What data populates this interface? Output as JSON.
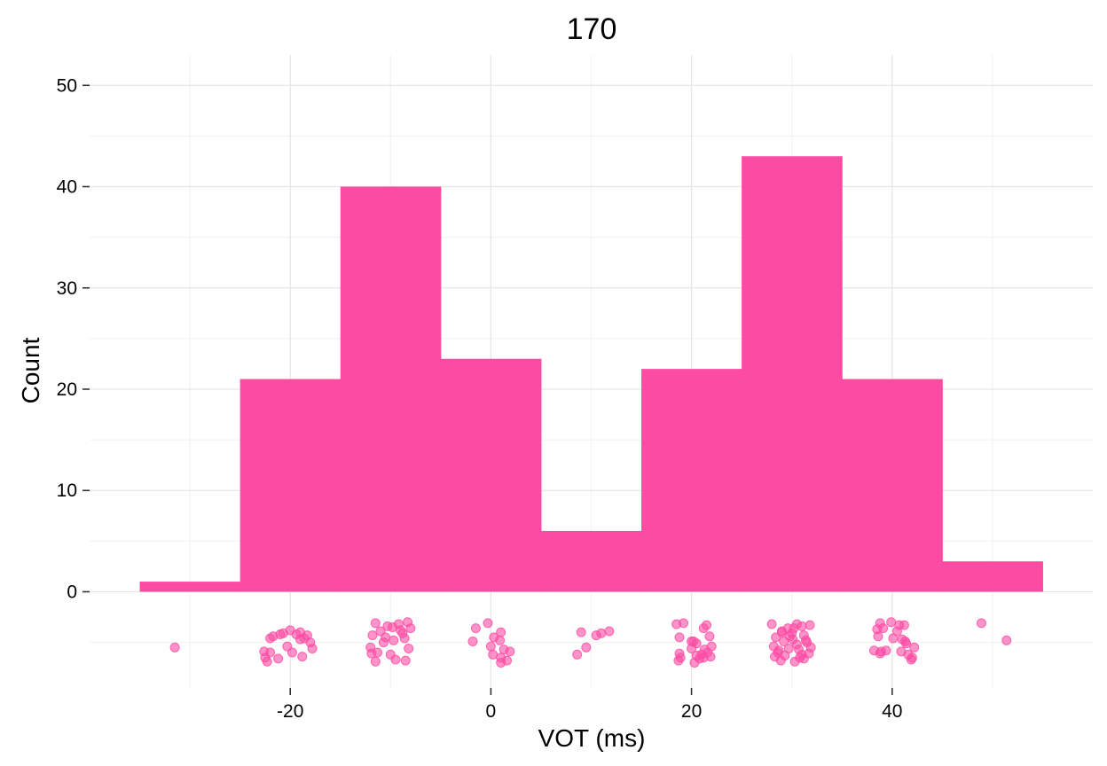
{
  "chart_data": {
    "type": "histogram",
    "title": "170",
    "xlabel": "VOT (ms)",
    "ylabel": "Count",
    "xlim": [
      -40,
      60
    ],
    "ylim": [
      -9.5,
      53
    ],
    "x_ticks": [
      -20,
      0,
      20,
      40
    ],
    "x_tick_labels": [
      "-20",
      "0",
      "20",
      "40"
    ],
    "y_ticks": [
      0,
      10,
      20,
      30,
      40,
      50
    ],
    "y_tick_labels": [
      "0",
      "10",
      "20",
      "30",
      "40",
      "50"
    ],
    "bin_width": 10,
    "bins": [
      {
        "x0": -35,
        "x1": -25,
        "count": 1
      },
      {
        "x0": -25,
        "x1": -15,
        "count": 21
      },
      {
        "x0": -15,
        "x1": -5,
        "count": 40
      },
      {
        "x0": -5,
        "x1": 5,
        "count": 23
      },
      {
        "x0": 5,
        "x1": 15,
        "count": 6
      },
      {
        "x0": 15,
        "x1": 25,
        "count": 22
      },
      {
        "x0": 25,
        "x1": 35,
        "count": 43
      },
      {
        "x0": 35,
        "x1": 45,
        "count": 21
      },
      {
        "x0": 45,
        "x1": 55,
        "count": 3
      }
    ],
    "jitter_points": [
      {
        "x": -31.5,
        "y": -5.5
      },
      {
        "x": -20,
        "y": -3.8
      },
      {
        "x": -19,
        "y": -4.0
      },
      {
        "x": -18.3,
        "y": -4.3
      },
      {
        "x": -21,
        "y": -4.2
      },
      {
        "x": -22,
        "y": -4.6
      },
      {
        "x": -18,
        "y": -5.0
      },
      {
        "x": -17.8,
        "y": -5.6
      },
      {
        "x": -19.8,
        "y": -6.0
      },
      {
        "x": -21.2,
        "y": -6.6
      },
      {
        "x": -22.3,
        "y": -6.9
      },
      {
        "x": -22.0,
        "y": -6.0
      },
      {
        "x": -20.3,
        "y": -5.4
      },
      {
        "x": -18.8,
        "y": -6.4
      },
      {
        "x": -22.5,
        "y": -6.5
      },
      {
        "x": -19.0,
        "y": -4.7
      },
      {
        "x": -22.6,
        "y": -5.9
      },
      {
        "x": -18.6,
        "y": -4.6
      },
      {
        "x": -21.7,
        "y": -4.4
      },
      {
        "x": -20.7,
        "y": -4.1
      },
      {
        "x": -19.4,
        "y": -4.2
      },
      {
        "x": -11.5,
        "y": -3.1
      },
      {
        "x": -10.3,
        "y": -3.4
      },
      {
        "x": -9.2,
        "y": -3.2
      },
      {
        "x": -8.3,
        "y": -3.0
      },
      {
        "x": -8.0,
        "y": -3.6
      },
      {
        "x": -8.8,
        "y": -4.1
      },
      {
        "x": -9.7,
        "y": -4.8
      },
      {
        "x": -10.7,
        "y": -5.0
      },
      {
        "x": -11.8,
        "y": -4.3
      },
      {
        "x": -12.0,
        "y": -5.5
      },
      {
        "x": -11.3,
        "y": -6.0
      },
      {
        "x": -9.5,
        "y": -6.7
      },
      {
        "x": -8.5,
        "y": -6.8
      },
      {
        "x": -11.5,
        "y": -6.9
      },
      {
        "x": -8.2,
        "y": -5.6
      },
      {
        "x": -10.0,
        "y": -6.2
      },
      {
        "x": -11.0,
        "y": -3.9
      },
      {
        "x": -9.0,
        "y": -3.8
      },
      {
        "x": -10.5,
        "y": -4.5
      },
      {
        "x": -8.6,
        "y": -4.6
      },
      {
        "x": -11.9,
        "y": -6.1
      },
      {
        "x": -9.8,
        "y": -3.5
      },
      {
        "x": -0.3,
        "y": -3.1
      },
      {
        "x": -1.5,
        "y": -3.6
      },
      {
        "x": 1.0,
        "y": -4.0
      },
      {
        "x": 0.3,
        "y": -4.5
      },
      {
        "x": -1.8,
        "y": -4.9
      },
      {
        "x": 0.9,
        "y": -4.8
      },
      {
        "x": 0.0,
        "y": -5.4
      },
      {
        "x": 1.3,
        "y": -5.7
      },
      {
        "x": 1.9,
        "y": -5.9
      },
      {
        "x": 0.2,
        "y": -6.2
      },
      {
        "x": 1.0,
        "y": -6.5
      },
      {
        "x": 1.6,
        "y": -6.8
      },
      {
        "x": 1.0,
        "y": -7.0
      },
      {
        "x": 9.0,
        "y": -4.0
      },
      {
        "x": 10.5,
        "y": -4.3
      },
      {
        "x": 11.0,
        "y": -4.1
      },
      {
        "x": 11.8,
        "y": -3.9
      },
      {
        "x": 9.5,
        "y": -5.5
      },
      {
        "x": 8.6,
        "y": -6.2
      },
      {
        "x": 18.5,
        "y": -3.2
      },
      {
        "x": 19.2,
        "y": -3.1
      },
      {
        "x": 21.5,
        "y": -3.3
      },
      {
        "x": 21.2,
        "y": -3.6
      },
      {
        "x": 18.8,
        "y": -4.5
      },
      {
        "x": 21.8,
        "y": -4.4
      },
      {
        "x": 20.2,
        "y": -4.9
      },
      {
        "x": 20.0,
        "y": -5.6
      },
      {
        "x": 21.3,
        "y": -5.7
      },
      {
        "x": 18.8,
        "y": -6.1
      },
      {
        "x": 20.5,
        "y": -6.3
      },
      {
        "x": 21.0,
        "y": -6.2
      },
      {
        "x": 21.6,
        "y": -6.0
      },
      {
        "x": 18.7,
        "y": -6.8
      },
      {
        "x": 20.3,
        "y": -7.0
      },
      {
        "x": 21.2,
        "y": -6.5
      },
      {
        "x": 22.0,
        "y": -5.4
      },
      {
        "x": 20.8,
        "y": -6.6
      },
      {
        "x": 20.5,
        "y": -5.1
      },
      {
        "x": 18.9,
        "y": -6.5
      },
      {
        "x": 21.9,
        "y": -6.4
      },
      {
        "x": 20.0,
        "y": -4.9
      },
      {
        "x": 28.0,
        "y": -3.2
      },
      {
        "x": 29.6,
        "y": -3.6
      },
      {
        "x": 30.5,
        "y": -3.2
      },
      {
        "x": 31.0,
        "y": -3.4
      },
      {
        "x": 31.8,
        "y": -3.3
      },
      {
        "x": 29.0,
        "y": -4.0
      },
      {
        "x": 30.0,
        "y": -4.1
      },
      {
        "x": 31.2,
        "y": -4.3
      },
      {
        "x": 28.4,
        "y": -4.5
      },
      {
        "x": 29.2,
        "y": -4.9
      },
      {
        "x": 31.5,
        "y": -5.0
      },
      {
        "x": 28.2,
        "y": -5.4
      },
      {
        "x": 29.7,
        "y": -5.6
      },
      {
        "x": 30.7,
        "y": -5.7
      },
      {
        "x": 31.9,
        "y": -5.5
      },
      {
        "x": 28.6,
        "y": -6.0
      },
      {
        "x": 29.3,
        "y": -6.3
      },
      {
        "x": 31.0,
        "y": -6.2
      },
      {
        "x": 31.7,
        "y": -6.1
      },
      {
        "x": 28.9,
        "y": -6.8
      },
      {
        "x": 30.3,
        "y": -6.9
      },
      {
        "x": 30.8,
        "y": -6.5
      },
      {
        "x": 29.0,
        "y": -3.9
      },
      {
        "x": 30.1,
        "y": -4.7
      },
      {
        "x": 28.7,
        "y": -5.8
      },
      {
        "x": 31.2,
        "y": -6.6
      },
      {
        "x": 30.2,
        "y": -3.6
      },
      {
        "x": 29.8,
        "y": -4.4
      },
      {
        "x": 31.4,
        "y": -4.8
      },
      {
        "x": 28.3,
        "y": -6.4
      },
      {
        "x": 30.5,
        "y": -5.2
      },
      {
        "x": 38.8,
        "y": -3.1
      },
      {
        "x": 39.9,
        "y": -3.0
      },
      {
        "x": 40.7,
        "y": -3.3
      },
      {
        "x": 41.2,
        "y": -3.3
      },
      {
        "x": 38.5,
        "y": -3.7
      },
      {
        "x": 38.6,
        "y": -4.4
      },
      {
        "x": 40.1,
        "y": -4.6
      },
      {
        "x": 41.0,
        "y": -4.7
      },
      {
        "x": 41.4,
        "y": -5.1
      },
      {
        "x": 42.2,
        "y": -5.5
      },
      {
        "x": 38.2,
        "y": -5.8
      },
      {
        "x": 38.8,
        "y": -6.1
      },
      {
        "x": 39.4,
        "y": -5.8
      },
      {
        "x": 40.9,
        "y": -5.9
      },
      {
        "x": 41.6,
        "y": -6.2
      },
      {
        "x": 41.9,
        "y": -6.7
      },
      {
        "x": 42.0,
        "y": -6.5
      },
      {
        "x": 40.5,
        "y": -3.9
      },
      {
        "x": 39.1,
        "y": -3.6
      },
      {
        "x": 41.3,
        "y": -4.9
      },
      {
        "x": 38.9,
        "y": -5.9
      },
      {
        "x": 48.9,
        "y": -3.1
      },
      {
        "x": 51.4,
        "y": -4.8
      }
    ]
  }
}
